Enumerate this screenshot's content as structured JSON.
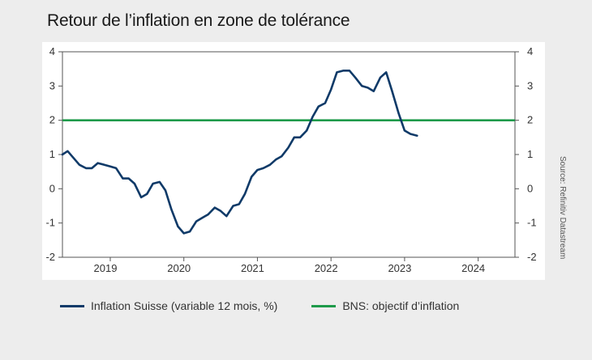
{
  "title": "Retour de l’inflation en zone de tolérance",
  "source": "Source: Refinitiv Datastream",
  "colors": {
    "inflation": "#0f3a68",
    "target": "#1e9a4a",
    "axis": "#555555"
  },
  "legend": [
    {
      "label": "Inflation Suisse (variable 12 mois, %)",
      "color": "#0f3a68"
    },
    {
      "label": "BNS: objectif d’inflation",
      "color": "#1e9a4a"
    }
  ],
  "chart_data": {
    "type": "line",
    "title": "Retour de l’inflation en zone de tolérance",
    "xlabel": "",
    "ylabel": "",
    "xlim": [
      2018.35,
      2024.5
    ],
    "ylim": [
      -2,
      4
    ],
    "x_ticks": [
      "2019",
      "2020",
      "2021",
      "2022",
      "2023",
      "2024"
    ],
    "y_ticks": [
      -2,
      -1,
      0,
      1,
      2,
      3,
      4
    ],
    "y_axis_both_sides": true,
    "grid": false,
    "legend_position": "bottom",
    "series": [
      {
        "name": "Inflation Suisse (variable 12 mois, %)",
        "x": [
          2018.35,
          2018.42,
          2018.5,
          2018.58,
          2018.67,
          2018.75,
          2018.83,
          2018.92,
          2019.0,
          2019.08,
          2019.17,
          2019.25,
          2019.33,
          2019.42,
          2019.5,
          2019.58,
          2019.67,
          2019.75,
          2019.83,
          2019.92,
          2020.0,
          2020.08,
          2020.17,
          2020.25,
          2020.33,
          2020.42,
          2020.5,
          2020.58,
          2020.67,
          2020.75,
          2020.83,
          2020.92,
          2021.0,
          2021.08,
          2021.17,
          2021.25,
          2021.33,
          2021.42,
          2021.5,
          2021.58,
          2021.67,
          2021.75,
          2021.83,
          2021.92,
          2022.0,
          2022.08,
          2022.17,
          2022.25,
          2022.33,
          2022.42,
          2022.5,
          2022.58,
          2022.67,
          2022.75,
          2022.83,
          2022.92,
          2023.0,
          2023.08,
          2023.17
        ],
        "values": [
          1.0,
          1.1,
          0.9,
          0.7,
          0.6,
          0.6,
          0.75,
          0.7,
          0.65,
          0.6,
          0.3,
          0.3,
          0.15,
          -0.25,
          -0.15,
          0.15,
          0.2,
          -0.05,
          -0.6,
          -1.1,
          -1.3,
          -1.25,
          -0.95,
          -0.85,
          -0.75,
          -0.55,
          -0.65,
          -0.8,
          -0.5,
          -0.45,
          -0.15,
          0.35,
          0.55,
          0.6,
          0.7,
          0.85,
          0.95,
          1.2,
          1.5,
          1.5,
          1.7,
          2.1,
          2.4,
          2.5,
          2.9,
          3.4,
          3.45,
          3.45,
          3.25,
          3.0,
          2.95,
          2.85,
          3.25,
          3.4,
          2.85,
          2.2,
          1.7,
          1.6,
          1.55
        ]
      },
      {
        "name": "BNS: objectif d’inflation",
        "x": [
          2018.35,
          2024.5
        ],
        "values": [
          2,
          2
        ]
      }
    ]
  }
}
